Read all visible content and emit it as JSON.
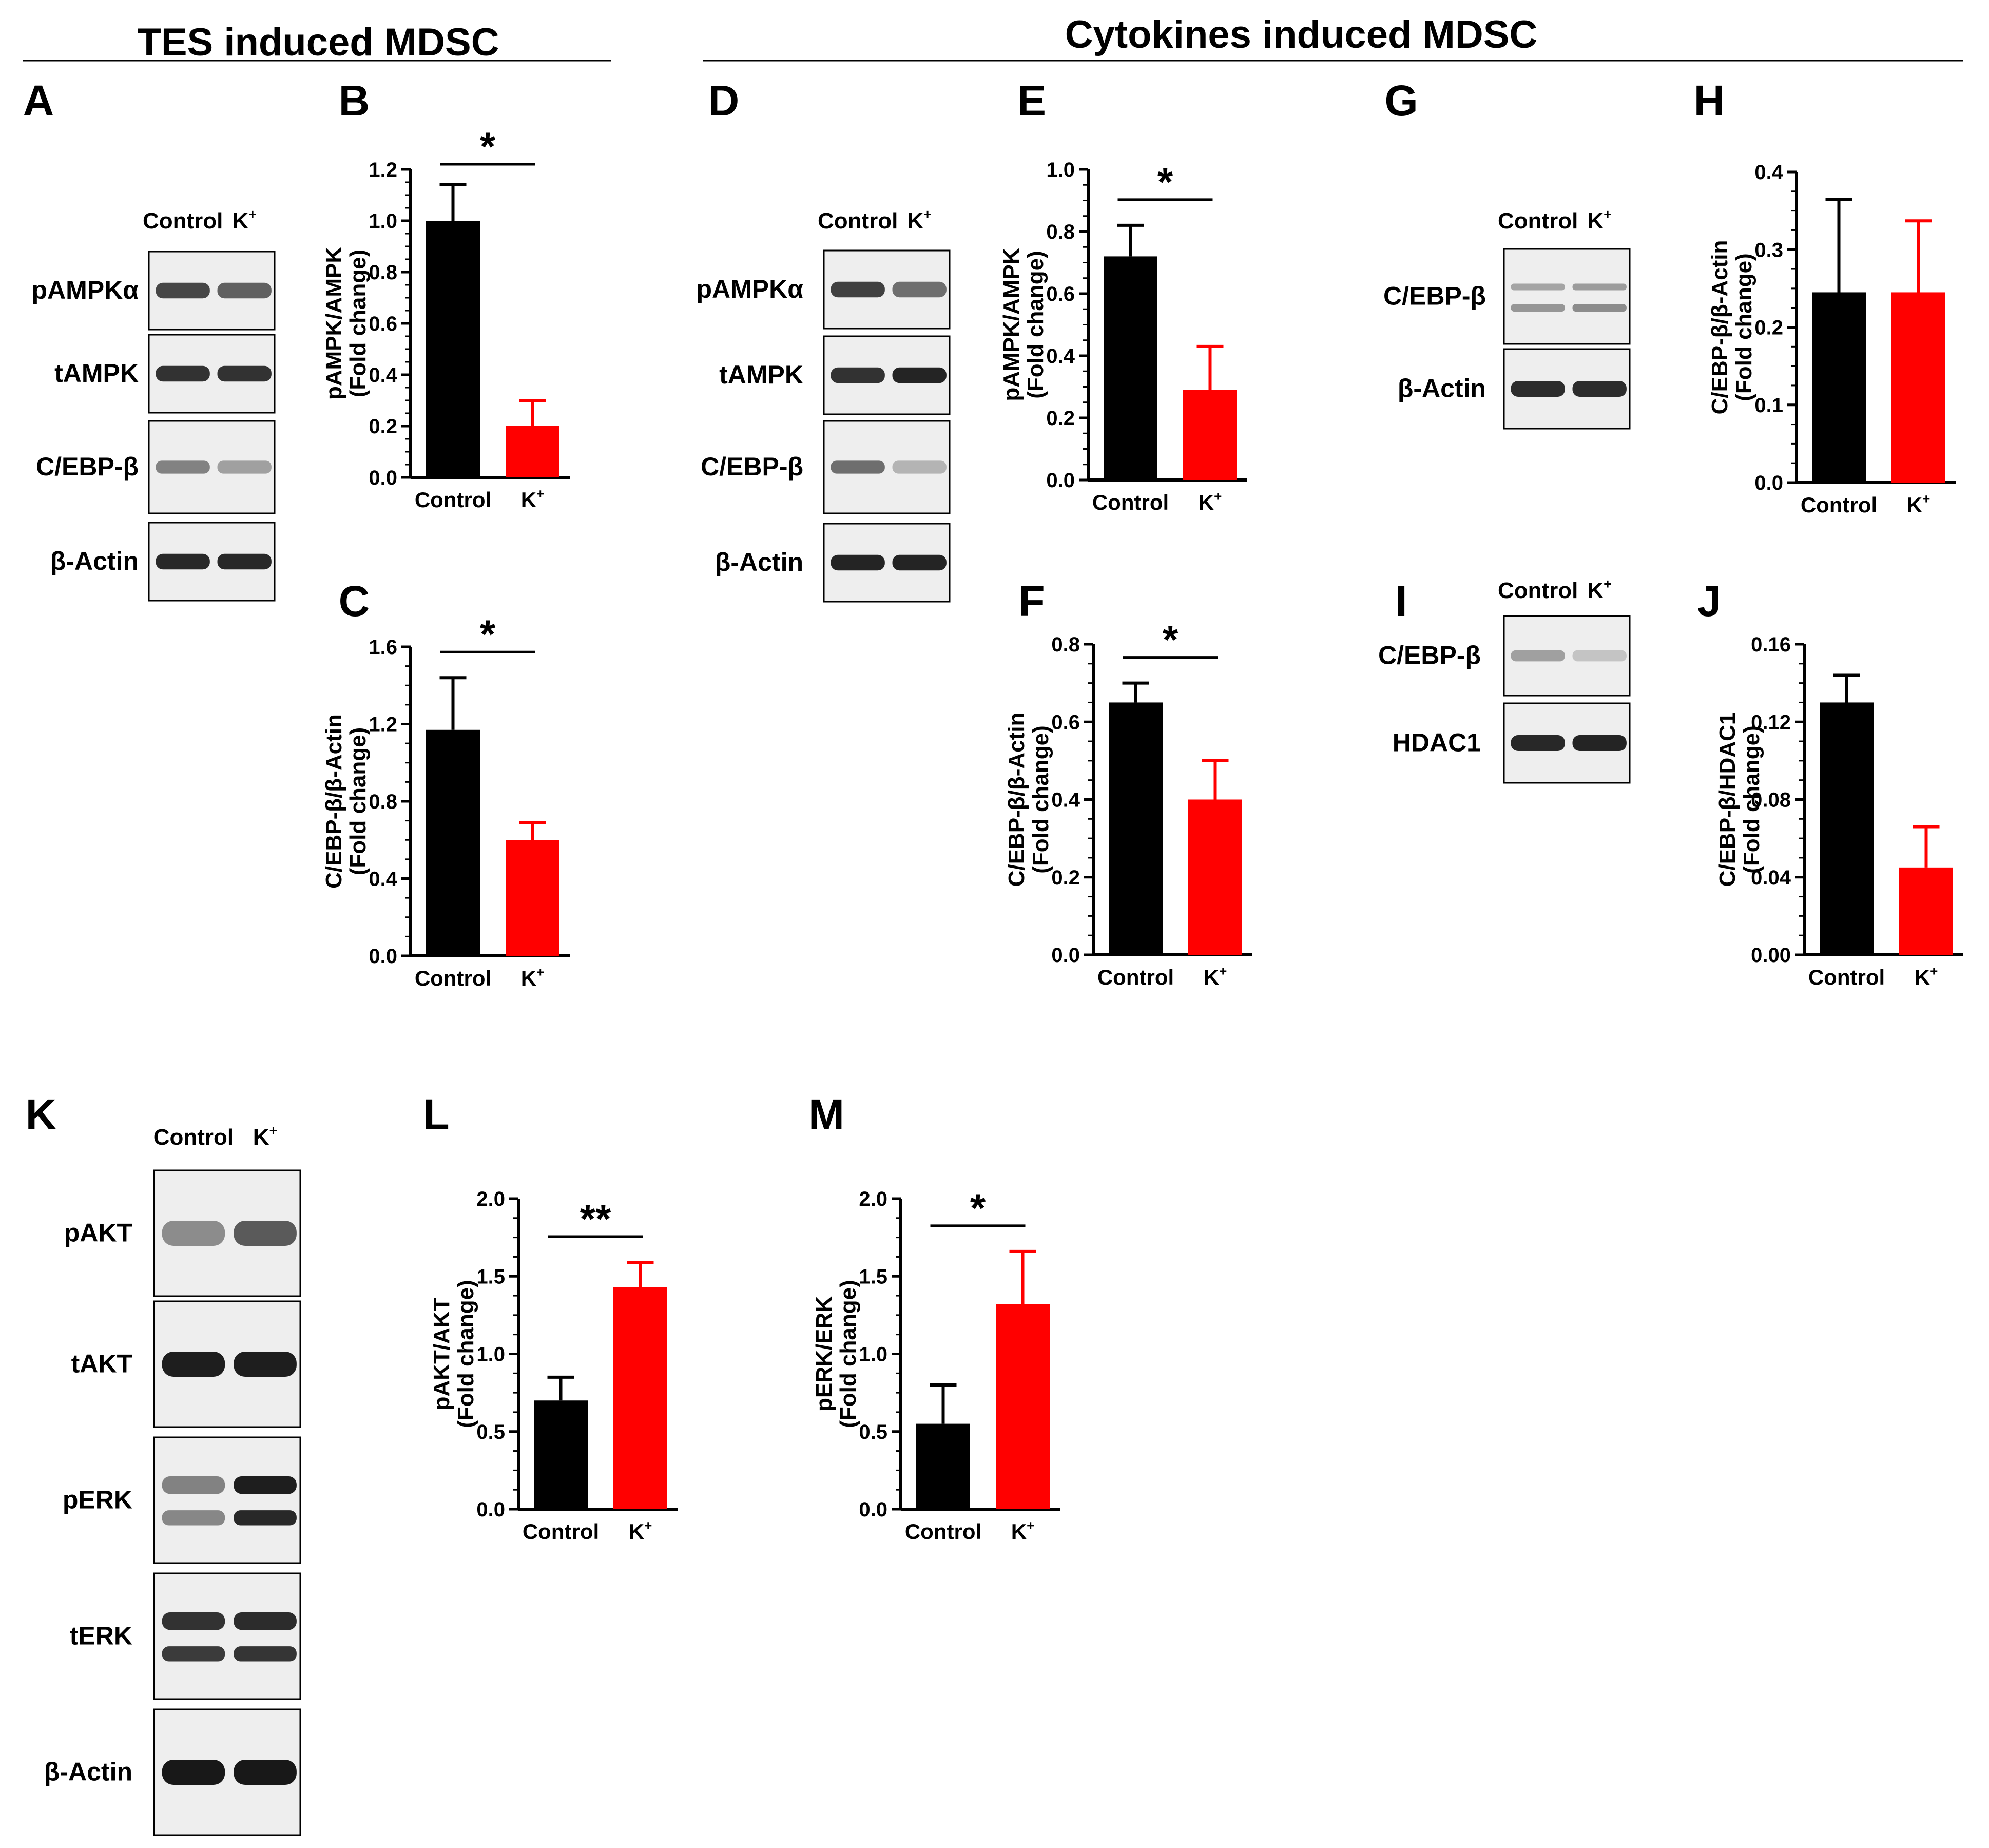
{
  "headers": {
    "left": "TES induced MDSC",
    "right": "Cytokines induced MDSC"
  },
  "colors": {
    "control": "#000000",
    "k": "#ff0000"
  },
  "group_labels": [
    "Control",
    "K+"
  ],
  "blot_panels": [
    {
      "id": "A",
      "lanes": [
        "Control",
        "K+"
      ],
      "bands": [
        {
          "label": "pAMPKα",
          "pattern": "single",
          "intensity": [
            0.75,
            0.62
          ]
        },
        {
          "label": "tAMPK",
          "pattern": "single",
          "intensity": [
            0.85,
            0.85
          ]
        },
        {
          "label": "C/EBP-β",
          "pattern": "faint",
          "intensity": [
            0.45,
            0.3
          ]
        },
        {
          "label": "β-Actin",
          "pattern": "single",
          "intensity": [
            0.9,
            0.9
          ]
        }
      ]
    },
    {
      "id": "D",
      "lanes": [
        "Control",
        "K+"
      ],
      "bands": [
        {
          "label": "pAMPKα",
          "pattern": "single",
          "intensity": [
            0.78,
            0.55
          ]
        },
        {
          "label": "tAMPK",
          "pattern": "single",
          "intensity": [
            0.85,
            0.92
          ]
        },
        {
          "label": "C/EBP-β",
          "pattern": "faint",
          "intensity": [
            0.55,
            0.2
          ]
        },
        {
          "label": "β-Actin",
          "pattern": "single",
          "intensity": [
            0.92,
            0.92
          ]
        }
      ]
    },
    {
      "id": "G",
      "lanes": [
        "Control",
        "K+"
      ],
      "bands": [
        {
          "label": "C/EBP-β",
          "pattern": "double-faint",
          "intensity": [
            0.35,
            0.4
          ]
        },
        {
          "label": "β-Actin",
          "pattern": "single",
          "intensity": [
            0.88,
            0.88
          ]
        }
      ]
    },
    {
      "id": "I",
      "lanes": [
        "Control",
        "K+"
      ],
      "bands": [
        {
          "label": "C/EBP-β",
          "pattern": "faint",
          "intensity": [
            0.3,
            0.12
          ]
        },
        {
          "label": "HDAC1",
          "pattern": "single",
          "intensity": [
            0.9,
            0.92
          ]
        }
      ]
    },
    {
      "id": "K",
      "lanes": [
        "Control",
        "K+"
      ],
      "bands": [
        {
          "label": "pAKT",
          "pattern": "single",
          "intensity": [
            0.4,
            0.65
          ]
        },
        {
          "label": "tAKT",
          "pattern": "single",
          "intensity": [
            0.95,
            0.95
          ]
        },
        {
          "label": "pERK",
          "pattern": "double",
          "intensity": [
            0.45,
            0.95
          ]
        },
        {
          "label": "tERK",
          "pattern": "double",
          "intensity": [
            0.85,
            0.88
          ]
        },
        {
          "label": "β-Actin",
          "pattern": "single",
          "intensity": [
            0.98,
            0.98
          ]
        }
      ]
    }
  ],
  "chart_data": [
    {
      "id": "B",
      "type": "bar",
      "categories": [
        "Control",
        "K+"
      ],
      "values": [
        1.0,
        0.2
      ],
      "errors": [
        0.14,
        0.1
      ],
      "ylabel": "pAMPK/AMPK",
      "ylabel2": "(Fold change)",
      "ylim": [
        0,
        1.2
      ],
      "yticks": [
        "0.0",
        "0.2",
        "0.4",
        "0.6",
        "0.8",
        "1.0",
        "1.2"
      ],
      "significance": "*"
    },
    {
      "id": "C",
      "type": "bar",
      "categories": [
        "Control",
        "K+"
      ],
      "values": [
        1.17,
        0.6
      ],
      "errors": [
        0.27,
        0.09
      ],
      "ylabel": "C/EBP-β/β-Actin",
      "ylabel2": "(Fold change)",
      "ylim": [
        0,
        1.6
      ],
      "yticks": [
        "0.0",
        "0.4",
        "0.8",
        "1.2",
        "1.6"
      ],
      "significance": "*"
    },
    {
      "id": "E",
      "type": "bar",
      "categories": [
        "Control",
        "K+"
      ],
      "values": [
        0.72,
        0.29
      ],
      "errors": [
        0.1,
        0.14
      ],
      "ylabel": "pAMPK/AMPK",
      "ylabel2": "(Fold change)",
      "ylim": [
        0,
        1.0
      ],
      "yticks": [
        "0.0",
        "0.2",
        "0.4",
        "0.6",
        "0.8",
        "1.0"
      ],
      "significance": "*"
    },
    {
      "id": "F",
      "type": "bar",
      "categories": [
        "Control",
        "K+"
      ],
      "values": [
        0.65,
        0.4
      ],
      "errors": [
        0.05,
        0.1
      ],
      "ylabel": "C/EBP-β/β-Actin",
      "ylabel2": "(Fold change)",
      "ylim": [
        0,
        0.8
      ],
      "yticks": [
        "0.0",
        "0.2",
        "0.4",
        "0.6",
        "0.8"
      ],
      "significance": "*"
    },
    {
      "id": "H",
      "type": "bar",
      "categories": [
        "Control",
        "K+"
      ],
      "values": [
        0.245,
        0.245
      ],
      "errors": [
        0.12,
        0.092
      ],
      "ylabel": "C/EBP-β/β-Actin",
      "ylabel2": "(Fold change)",
      "ylim": [
        0,
        0.4
      ],
      "yticks": [
        "0.0",
        "0.1",
        "0.2",
        "0.3",
        "0.4"
      ],
      "significance": ""
    },
    {
      "id": "J",
      "type": "bar",
      "categories": [
        "Control",
        "K+"
      ],
      "values": [
        0.13,
        0.045
      ],
      "errors": [
        0.014,
        0.021
      ],
      "ylabel": "C/EBP-β/HDAC1",
      "ylabel2": "(Fold change)",
      "ylim": [
        0,
        0.16
      ],
      "yticks": [
        "0.00",
        "0.04",
        "0.08",
        "0.12",
        "0.16"
      ],
      "significance": ""
    },
    {
      "id": "L",
      "type": "bar",
      "categories": [
        "Control",
        "K+"
      ],
      "values": [
        0.7,
        1.43
      ],
      "errors": [
        0.15,
        0.16
      ],
      "ylabel": "pAKT/AKT",
      "ylabel2": "(Fold change)",
      "ylim": [
        0,
        2.0
      ],
      "yticks": [
        "0.0",
        "0.5",
        "1.0",
        "1.5",
        "2.0"
      ],
      "significance": "**"
    },
    {
      "id": "M",
      "type": "bar",
      "categories": [
        "Control",
        "K+"
      ],
      "values": [
        0.55,
        1.32
      ],
      "errors": [
        0.25,
        0.34
      ],
      "ylabel": "pERK/ERK",
      "ylabel2": "(Fold change)",
      "ylim": [
        0,
        2.0
      ],
      "yticks": [
        "0.0",
        "0.5",
        "1.0",
        "1.5",
        "2.0"
      ],
      "significance": "*"
    }
  ]
}
